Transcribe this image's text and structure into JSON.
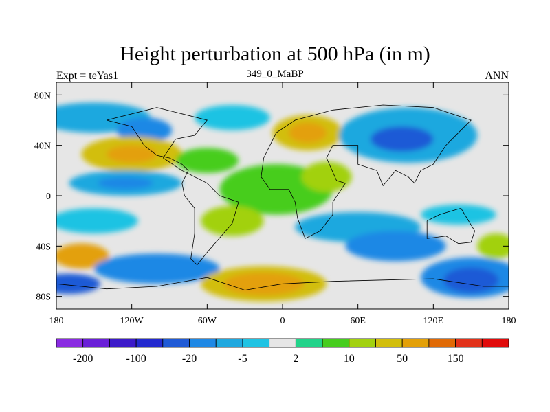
{
  "chart_data": {
    "type": "contour-map",
    "title": "Height perturbation at 500 hPa (in m)",
    "left_string": "Expt = teYas1",
    "center_string": "349_0_MaBP",
    "right_string": "ANN",
    "x_ticks": [
      {
        "lon": -180,
        "label": "180"
      },
      {
        "lon": -120,
        "label": "120W"
      },
      {
        "lon": -60,
        "label": "60W"
      },
      {
        "lon": 0,
        "label": "0"
      },
      {
        "lon": 60,
        "label": "60E"
      },
      {
        "lon": 120,
        "label": "120E"
      },
      {
        "lon": 180,
        "label": "180"
      }
    ],
    "y_ticks": [
      {
        "lat": 80,
        "label": "80N"
      },
      {
        "lat": 40,
        "label": "40N"
      },
      {
        "lat": 0,
        "label": "0"
      },
      {
        "lat": -40,
        "label": "40S"
      },
      {
        "lat": -80,
        "label": "80S"
      }
    ],
    "xlim": [
      -180,
      180
    ],
    "ylim": [
      -90,
      90
    ],
    "colorbar": {
      "colors": [
        "#8a2be2",
        "#6a1fd8",
        "#3c1ac9",
        "#2329cf",
        "#1f5ad6",
        "#1e88e5",
        "#1fa8df",
        "#1fc3e3",
        "#e6e6e6",
        "#22d38a",
        "#46cd1e",
        "#a2d10f",
        "#d2be0b",
        "#e3a008",
        "#e06a06",
        "#e2321a",
        "#e10b0b"
      ],
      "labels": [
        {
          "boundary": 1,
          "text": "-200"
        },
        {
          "boundary": 3,
          "text": "-100"
        },
        {
          "boundary": 5,
          "text": "-20"
        },
        {
          "boundary": 7,
          "text": "-5"
        },
        {
          "boundary": 9,
          "text": "2"
        },
        {
          "boundary": 11,
          "text": "10"
        },
        {
          "boundary": 13,
          "text": "50"
        },
        {
          "boundary": 15,
          "text": "150"
        }
      ]
    },
    "field_blobs": [
      {
        "lon": -150,
        "lat": 62,
        "rlon": 45,
        "rlat": 12,
        "level": 6
      },
      {
        "lon": -110,
        "lat": 52,
        "rlon": 22,
        "rlat": 10,
        "level": 5
      },
      {
        "lon": -40,
        "lat": 62,
        "rlon": 30,
        "rlat": 10,
        "level": 7
      },
      {
        "lon": -120,
        "lat": 33,
        "rlon": 40,
        "rlat": 14,
        "level": 12
      },
      {
        "lon": -120,
        "lat": 33,
        "rlon": 20,
        "rlat": 7,
        "level": 13
      },
      {
        "lon": -60,
        "lat": 28,
        "rlon": 25,
        "rlat": 10,
        "level": 10
      },
      {
        "lon": 20,
        "lat": 50,
        "rlon": 28,
        "rlat": 14,
        "level": 12
      },
      {
        "lon": 20,
        "lat": 50,
        "rlon": 15,
        "rlat": 8,
        "level": 13
      },
      {
        "lon": 100,
        "lat": 48,
        "rlon": 55,
        "rlat": 22,
        "level": 6
      },
      {
        "lon": 95,
        "lat": 45,
        "rlon": 25,
        "rlat": 10,
        "level": 4
      },
      {
        "lon": -125,
        "lat": 10,
        "rlon": 45,
        "rlat": 10,
        "level": 6
      },
      {
        "lon": -125,
        "lat": 10,
        "rlon": 22,
        "rlat": 5,
        "level": 5
      },
      {
        "lon": -5,
        "lat": 5,
        "rlon": 45,
        "rlat": 20,
        "level": 10
      },
      {
        "lon": 35,
        "lat": 15,
        "rlon": 20,
        "rlat": 12,
        "level": 11
      },
      {
        "lon": -150,
        "lat": -20,
        "rlon": 35,
        "rlat": 10,
        "level": 7
      },
      {
        "lon": -160,
        "lat": -48,
        "rlon": 22,
        "rlat": 10,
        "level": 13
      },
      {
        "lon": -170,
        "lat": -70,
        "rlon": 25,
        "rlat": 8,
        "level": 4
      },
      {
        "lon": -100,
        "lat": -58,
        "rlon": 50,
        "rlat": 12,
        "level": 5
      },
      {
        "lon": -40,
        "lat": -20,
        "rlon": 25,
        "rlat": 12,
        "level": 11
      },
      {
        "lon": -15,
        "lat": -70,
        "rlon": 50,
        "rlat": 14,
        "level": 12
      },
      {
        "lon": -15,
        "lat": -70,
        "rlon": 32,
        "rlat": 9,
        "level": 13
      },
      {
        "lon": 60,
        "lat": -25,
        "rlon": 50,
        "rlat": 12,
        "level": 6
      },
      {
        "lon": 90,
        "lat": -40,
        "rlon": 40,
        "rlat": 12,
        "level": 5
      },
      {
        "lon": 150,
        "lat": -65,
        "rlon": 40,
        "rlat": 16,
        "level": 5
      },
      {
        "lon": 150,
        "lat": -67,
        "rlon": 22,
        "rlat": 10,
        "level": 4
      },
      {
        "lon": 140,
        "lat": -15,
        "rlon": 30,
        "rlat": 8,
        "level": 7
      },
      {
        "lon": 170,
        "lat": -40,
        "rlon": 15,
        "rlat": 10,
        "level": 11
      }
    ],
    "coastlines": [
      {
        "name": "americas",
        "points": [
          [
            -140,
            60
          ],
          [
            -120,
            55
          ],
          [
            -110,
            40
          ],
          [
            -100,
            32
          ],
          [
            -90,
            30
          ],
          [
            -80,
            25
          ],
          [
            -75,
            20
          ],
          [
            -80,
            10
          ],
          [
            -78,
            0
          ],
          [
            -70,
            -10
          ],
          [
            -70,
            -30
          ],
          [
            -73,
            -50
          ],
          [
            -68,
            -55
          ],
          [
            -60,
            -45
          ],
          [
            -40,
            -22
          ],
          [
            -35,
            -5
          ],
          [
            -50,
            0
          ],
          [
            -60,
            10
          ],
          [
            -80,
            20
          ],
          [
            -95,
            30
          ],
          [
            -85,
            45
          ],
          [
            -70,
            48
          ],
          [
            -60,
            60
          ],
          [
            -80,
            65
          ],
          [
            -100,
            70
          ],
          [
            -140,
            60
          ]
        ]
      },
      {
        "name": "africa-eurasia",
        "points": [
          [
            -15,
            30
          ],
          [
            -17,
            15
          ],
          [
            -10,
            5
          ],
          [
            5,
            5
          ],
          [
            10,
            -5
          ],
          [
            12,
            -18
          ],
          [
            18,
            -34
          ],
          [
            30,
            -28
          ],
          [
            40,
            -15
          ],
          [
            40,
            -5
          ],
          [
            50,
            10
          ],
          [
            43,
            12
          ],
          [
            35,
            30
          ],
          [
            40,
            40
          ],
          [
            60,
            40
          ],
          [
            60,
            25
          ],
          [
            75,
            20
          ],
          [
            80,
            8
          ],
          [
            90,
            20
          ],
          [
            100,
            15
          ],
          [
            105,
            10
          ],
          [
            110,
            20
          ],
          [
            120,
            25
          ],
          [
            130,
            40
          ],
          [
            140,
            50
          ],
          [
            150,
            60
          ],
          [
            120,
            70
          ],
          [
            80,
            72
          ],
          [
            40,
            68
          ],
          [
            10,
            60
          ],
          [
            -5,
            50
          ],
          [
            -10,
            40
          ],
          [
            -15,
            30
          ]
        ]
      },
      {
        "name": "australia",
        "points": [
          [
            115,
            -20
          ],
          [
            125,
            -15
          ],
          [
            135,
            -12
          ],
          [
            142,
            -10
          ],
          [
            145,
            -15
          ],
          [
            153,
            -28
          ],
          [
            150,
            -37
          ],
          [
            140,
            -38
          ],
          [
            130,
            -32
          ],
          [
            115,
            -34
          ],
          [
            115,
            -20
          ]
        ]
      },
      {
        "name": "antarctica",
        "points": [
          [
            -180,
            -70
          ],
          [
            -140,
            -74
          ],
          [
            -100,
            -72
          ],
          [
            -60,
            -65
          ],
          [
            -30,
            -75
          ],
          [
            0,
            -70
          ],
          [
            40,
            -68
          ],
          [
            80,
            -67
          ],
          [
            120,
            -66
          ],
          [
            160,
            -72
          ],
          [
            180,
            -72
          ]
        ]
      }
    ]
  }
}
